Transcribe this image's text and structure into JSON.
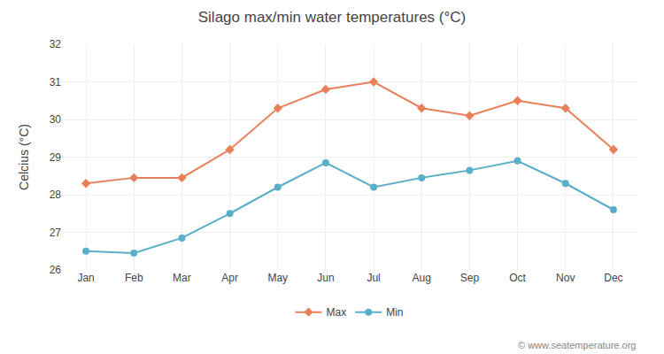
{
  "chart_data": {
    "type": "line",
    "title": "Silago max/min water temperatures (°C)",
    "ylabel": "Celcius (°C)",
    "categories": [
      "Jan",
      "Feb",
      "Mar",
      "Apr",
      "May",
      "Jun",
      "Jul",
      "Aug",
      "Sep",
      "Oct",
      "Nov",
      "Dec"
    ],
    "series": [
      {
        "name": "Max",
        "color": "#e8805a",
        "marker": "diamond",
        "values": [
          28.3,
          28.45,
          28.45,
          29.2,
          30.3,
          30.8,
          31.0,
          30.3,
          30.1,
          30.5,
          30.3,
          29.2
        ]
      },
      {
        "name": "Min",
        "color": "#5aafc8",
        "marker": "circle",
        "values": [
          26.5,
          26.45,
          26.85,
          27.5,
          28.2,
          28.85,
          28.2,
          28.45,
          28.65,
          28.9,
          28.3,
          27.6
        ]
      }
    ],
    "ylim": [
      26.0,
      32.0
    ],
    "yticks": [
      26,
      27,
      28,
      29,
      30,
      31,
      32
    ],
    "grid": true,
    "legend": "bottom",
    "annotations": [
      "© www.seatemperature.org"
    ]
  }
}
